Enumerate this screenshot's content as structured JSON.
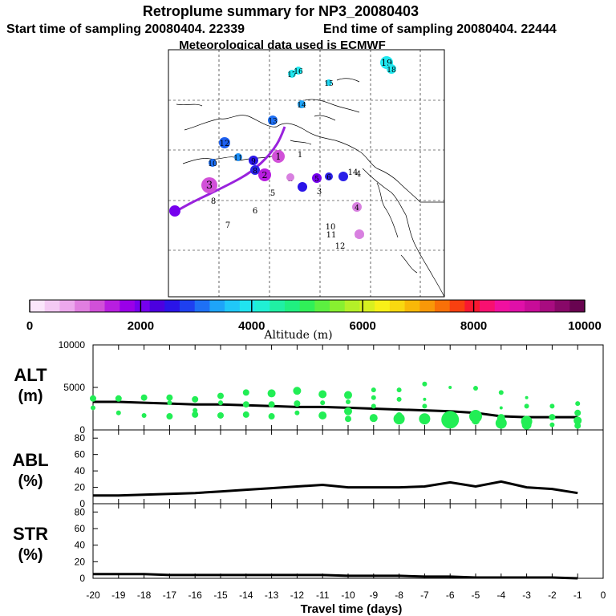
{
  "header": {
    "title": "Retroplume summary for NP3_20080403",
    "start_line": "Start time of sampling 20080404. 22339",
    "end_line": "End time of sampling 20080404. 22444",
    "met_line": "Meteorological data used is ECMWF"
  },
  "colors": {
    "alt_points": "#22ee55",
    "line": "#000000",
    "plume_line": "#9922dd",
    "grid": "#000000"
  },
  "colorbar": {
    "title": "Altitude (m)",
    "tick_labels": [
      "0",
      "2000",
      "4000",
      "6000",
      "8000",
      "10000"
    ],
    "colors": [
      "#fbe6fb",
      "#f4caf4",
      "#eca8ec",
      "#e07ee0",
      "#d150d8",
      "#b81ee0",
      "#9a00e8",
      "#7600ee",
      "#4c00e0",
      "#2a14e8",
      "#1e40f0",
      "#1e70f5",
      "#1ea4f8",
      "#20c8f8",
      "#20e4f0",
      "#20f0d4",
      "#20f0a4",
      "#20f080",
      "#30f058",
      "#5cf040",
      "#88f030",
      "#b4f028",
      "#d8f020",
      "#f8f018",
      "#f8d810",
      "#f8b808",
      "#f89808",
      "#f87008",
      "#f84010",
      "#f81830",
      "#f81070",
      "#f010a0",
      "#e010a8",
      "#c80c98",
      "#a80c80",
      "#880868",
      "#680450"
    ]
  },
  "map": {
    "name": "retroplume-map",
    "labels": [
      "1",
      "2",
      "3",
      "4",
      "5",
      "6",
      "7",
      "8",
      "9",
      "10",
      "11",
      "12",
      "13",
      "14",
      "15",
      "16",
      "19"
    ],
    "plume_points": [
      {
        "label": "19",
        "color": "#20e8f0",
        "size": 8
      },
      {
        "label": "18",
        "color": "#20e8f0",
        "size": 6
      },
      {
        "label": "17",
        "color": "#20e8f0",
        "size": 5
      },
      {
        "label": "16",
        "color": "#20e8f0",
        "size": 5
      },
      {
        "label": "15",
        "color": "#20d8f4",
        "size": 4
      },
      {
        "label": "14",
        "color": "#1ea4f8",
        "size": 5
      },
      {
        "label": "13",
        "color": "#1e70f5",
        "size": 6
      },
      {
        "label": "12",
        "color": "#1e60f0",
        "size": 7
      },
      {
        "label": "11",
        "color": "#1e90f8",
        "size": 5
      },
      {
        "label": "10",
        "color": "#1e70f5",
        "size": 5
      },
      {
        "label": "9",
        "color": "#2a14e8",
        "size": 6
      },
      {
        "label": "8",
        "color": "#2a24e8",
        "size": 6
      },
      {
        "label": "7",
        "color": "#3a10e0",
        "size": 5
      },
      {
        "label": "6",
        "color": "#2a20e8",
        "size": 5
      },
      {
        "label": "5",
        "color": "#7600ee",
        "size": 6
      },
      {
        "label": "4",
        "color": "#d880e0",
        "size": 6
      },
      {
        "label": "3",
        "color": "#d150d8",
        "size": 10
      },
      {
        "label": "2",
        "color": "#b81ee0",
        "size": 8
      },
      {
        "label": "1",
        "color": "#d150d8",
        "size": 8
      }
    ]
  },
  "chart_data": [
    {
      "type": "scatter",
      "name": "ALT",
      "panel_label": "ALT",
      "unit_label": "(m)",
      "ylim": [
        0,
        10000
      ],
      "yticks": [
        "0",
        "5000",
        "10000"
      ],
      "series": [
        {
          "name": "mean_altitude",
          "x": [
            -20,
            -19,
            -18,
            -17,
            -16,
            -15,
            -14,
            -13,
            -12,
            -11,
            -10,
            -9,
            -8,
            -7,
            -6,
            -5,
            -4,
            -3,
            -2,
            -1
          ],
          "values": [
            3300,
            3300,
            3200,
            3100,
            3000,
            3000,
            2900,
            2800,
            2700,
            2700,
            2600,
            2500,
            2400,
            2300,
            2200,
            2000,
            1600,
            1500,
            1500,
            1500
          ]
        },
        {
          "name": "plume_points",
          "points": [
            [
              -20,
              3700,
              4
            ],
            [
              -20,
              2600,
              3
            ],
            [
              -19,
              3700,
              4
            ],
            [
              -19,
              2000,
              3
            ],
            [
              -18,
              3800,
              4
            ],
            [
              -18,
              1700,
              3
            ],
            [
              -17,
              3800,
              4
            ],
            [
              -17,
              3200,
              3
            ],
            [
              -17,
              1600,
              4
            ],
            [
              -16,
              3600,
              4
            ],
            [
              -16,
              2300,
              3
            ],
            [
              -16,
              1800,
              4
            ],
            [
              -15,
              4000,
              4
            ],
            [
              -15,
              3200,
              3
            ],
            [
              -15,
              1700,
              4
            ],
            [
              -14,
              4400,
              4
            ],
            [
              -14,
              3000,
              4
            ],
            [
              -14,
              1800,
              4
            ],
            [
              -13,
              4300,
              5
            ],
            [
              -13,
              3000,
              4
            ],
            [
              -13,
              1600,
              4
            ],
            [
              -12,
              4600,
              5
            ],
            [
              -12,
              3100,
              4
            ],
            [
              -12,
              2000,
              3
            ],
            [
              -11,
              4200,
              5
            ],
            [
              -11,
              3200,
              3
            ],
            [
              -11,
              1700,
              5
            ],
            [
              -10,
              4100,
              5
            ],
            [
              -10,
              3300,
              3
            ],
            [
              -10,
              2200,
              5
            ],
            [
              -10,
              1300,
              4
            ],
            [
              -9,
              4700,
              3
            ],
            [
              -9,
              3800,
              3
            ],
            [
              -9,
              2800,
              3
            ],
            [
              -9,
              1400,
              5
            ],
            [
              -8,
              4700,
              3
            ],
            [
              -8,
              3600,
              3
            ],
            [
              -8,
              1700,
              4
            ],
            [
              -8,
              1300,
              7
            ],
            [
              -7,
              5400,
              3
            ],
            [
              -7,
              3600,
              2
            ],
            [
              -7,
              2800,
              3
            ],
            [
              -7,
              1300,
              7
            ],
            [
              -6,
              5000,
              2
            ],
            [
              -6,
              1200,
              11
            ],
            [
              -5,
              4900,
              3
            ],
            [
              -5,
              1600,
              8
            ],
            [
              -5,
              1100,
              5
            ],
            [
              -4,
              4400,
              3
            ],
            [
              -4,
              2600,
              2
            ],
            [
              -4,
              1400,
              5
            ],
            [
              -4,
              800,
              7
            ],
            [
              -3,
              3800,
              2
            ],
            [
              -3,
              2800,
              3
            ],
            [
              -3,
              1000,
              7
            ],
            [
              -3,
              600,
              6
            ],
            [
              -2,
              2800,
              3
            ],
            [
              -2,
              1500,
              4
            ],
            [
              -2,
              600,
              3
            ],
            [
              -1,
              3100,
              3
            ],
            [
              -1,
              2000,
              4
            ],
            [
              -1,
              1100,
              5
            ],
            [
              -1,
              500,
              4
            ]
          ]
        }
      ]
    },
    {
      "type": "line",
      "name": "ABL",
      "panel_label": "ABL",
      "unit_label": "(%)",
      "ylim": [
        0,
        90
      ],
      "yticks": [
        "0",
        "20",
        "40",
        "60",
        "80"
      ],
      "series": [
        {
          "name": "abl_fraction",
          "x": [
            -20,
            -19,
            -18,
            -17,
            -16,
            -15,
            -14,
            -13,
            -12,
            -11,
            -10,
            -9,
            -8,
            -7,
            -6,
            -5,
            -4,
            -3,
            -2,
            -1
          ],
          "values": [
            10,
            10,
            11,
            12,
            13,
            15,
            17,
            19,
            21,
            23,
            20,
            20,
            20,
            21,
            26,
            21,
            27,
            20,
            18,
            13
          ]
        }
      ]
    },
    {
      "type": "line",
      "name": "STR",
      "panel_label": "STR",
      "unit_label": "(%)",
      "ylim": [
        0,
        90
      ],
      "yticks": [
        "0",
        "20",
        "40",
        "60",
        "80"
      ],
      "xlabel": "Travel time (days)",
      "xticks": [
        "-20",
        "-19",
        "-18",
        "-17",
        "-16",
        "-15",
        "-14",
        "-13",
        "-12",
        "-11",
        "-10",
        "-9",
        "-8",
        "-7",
        "-6",
        "-5",
        "-4",
        "-3",
        "-2",
        "-1",
        "0"
      ],
      "series": [
        {
          "name": "stratospheric_fraction",
          "x": [
            -20,
            -19,
            -18,
            -17,
            -16,
            -15,
            -14,
            -13,
            -12,
            -11,
            -10,
            -9,
            -8,
            -7,
            -6,
            -5,
            -4,
            -3,
            -2,
            -1
          ],
          "values": [
            5,
            5,
            5,
            4,
            4,
            4,
            4,
            4,
            4,
            4,
            3,
            3,
            3,
            2,
            2,
            1,
            1,
            1,
            1,
            0
          ]
        }
      ]
    }
  ]
}
